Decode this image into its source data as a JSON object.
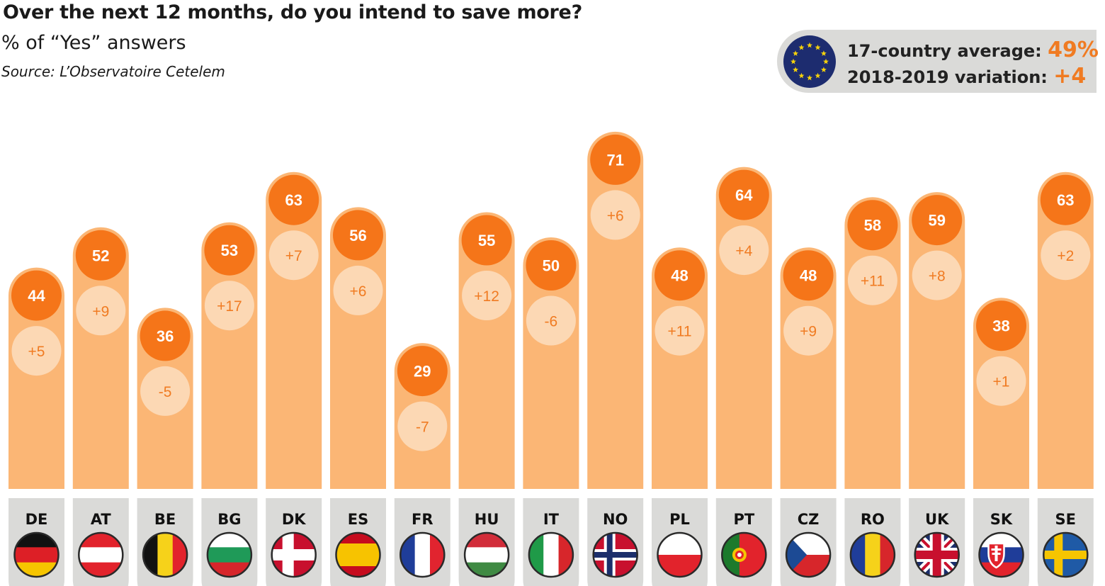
{
  "title": "Over the next 12 months, do you intend to save more?",
  "subtitle": "% of “Yes” answers",
  "source": "Source: L’Observatoire Cetelem",
  "summary": {
    "avg_label": "17-country average:",
    "avg_value": "49%",
    "var_label": "2018-2019 variation:",
    "var_value": "+4"
  },
  "colors": {
    "bar": "#fbb675",
    "value_circle": "#f57519",
    "change_circle": "#fcd8b4",
    "label_text": "#ffffff",
    "change_text": "#f07b22",
    "country_box": "#dadad8"
  },
  "chart_data": {
    "type": "bar",
    "title": "Over the next 12 months, do you intend to save more?",
    "ylabel": "% of “Yes” answers",
    "ylim": [
      0,
      80
    ],
    "categories": [
      "DE",
      "AT",
      "BE",
      "BG",
      "DK",
      "ES",
      "FR",
      "HU",
      "IT",
      "NO",
      "PL",
      "PT",
      "CZ",
      "RO",
      "UK",
      "SK",
      "SE"
    ],
    "values": [
      44,
      52,
      36,
      53,
      63,
      56,
      29,
      55,
      50,
      71,
      48,
      64,
      48,
      58,
      59,
      38,
      63
    ],
    "variation_labels": [
      "+5",
      "+9",
      "-5",
      "+17",
      "+7",
      "+6",
      "-7",
      "+12",
      "-6",
      "+6",
      "+11",
      "+4",
      "+9",
      "+11",
      "+8",
      "+1",
      "+2"
    ],
    "grid": false,
    "legend": "none"
  }
}
